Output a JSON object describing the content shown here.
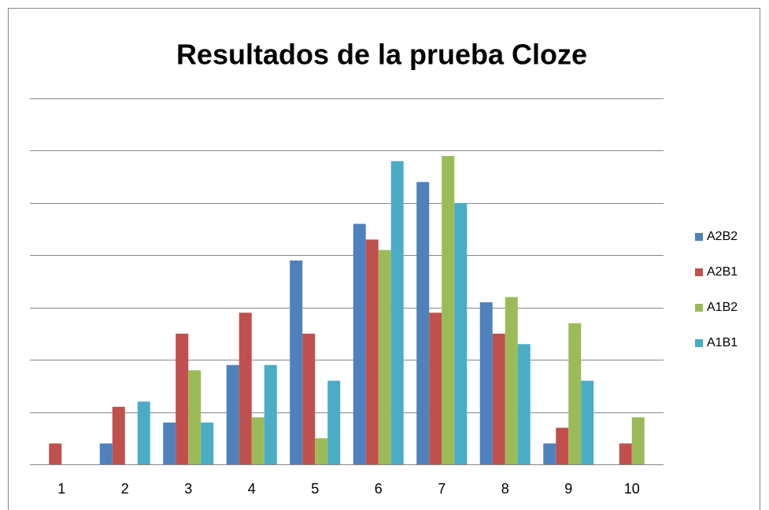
{
  "chart_data": {
    "type": "bar",
    "title": "Resultados de la prueba Cloze",
    "categories": [
      "1",
      "2",
      "3",
      "4",
      "5",
      "6",
      "7",
      "8",
      "9",
      "10"
    ],
    "series": [
      {
        "name": "A2B2",
        "color": "#4f81bd",
        "values": [
          0,
          0.4,
          0.8,
          1.9,
          3.9,
          4.6,
          5.4,
          3.1,
          0.4,
          0
        ]
      },
      {
        "name": "A2B1",
        "color": "#c0504d",
        "values": [
          0.4,
          1.1,
          2.5,
          2.9,
          2.5,
          4.3,
          2.9,
          2.5,
          0.7,
          0.4
        ]
      },
      {
        "name": "A1B2",
        "color": "#9bbb59",
        "values": [
          0,
          0,
          1.8,
          0.9,
          0.5,
          4.1,
          5.9,
          3.2,
          2.7,
          0.9
        ]
      },
      {
        "name": "A1B1",
        "color": "#4bacc6",
        "values": [
          0,
          1.2,
          0.8,
          1.9,
          1.6,
          5.8,
          5.0,
          2.3,
          1.6,
          0
        ]
      }
    ],
    "ylim": [
      0,
      7
    ],
    "yticks": [
      0,
      1,
      2,
      3,
      4,
      5,
      6,
      7
    ],
    "grid": true,
    "legend": "right"
  }
}
